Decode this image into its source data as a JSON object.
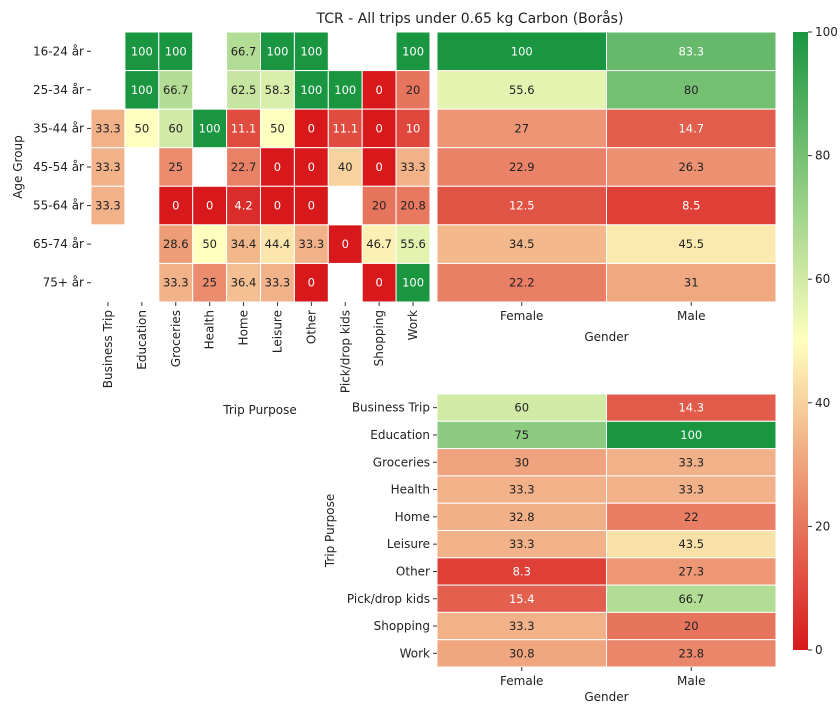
{
  "title": "TCR - All trips under 0.65 kg Carbon (Borås)",
  "colors": {
    "low": "#d7191c",
    "mid": "#ffffbf",
    "high": "#1a9641",
    "text_dark": "#222222",
    "text_light": "#ffffff"
  },
  "colorbar": {
    "min": 0,
    "max": 100,
    "ticks": [
      "0",
      "20",
      "40",
      "60",
      "80",
      "100"
    ]
  },
  "chart_data": [
    {
      "type": "heatmap",
      "xlabel": "Trip Purpose",
      "ylabel": "Age Group",
      "x": [
        "Business Trip",
        "Education",
        "Groceries",
        "Health",
        "Home",
        "Leisure",
        "Other",
        "Pick/drop kids",
        "Shopping",
        "Work"
      ],
      "y": [
        "16-24 år",
        "25-34 år",
        "35-44 år",
        "45-54 år",
        "55-64 år",
        "65-74 år",
        "75+ år"
      ],
      "values": [
        [
          null,
          100,
          100,
          null,
          66.7,
          100,
          100,
          null,
          null,
          100
        ],
        [
          null,
          100,
          66.7,
          null,
          62.5,
          58.3,
          100,
          100,
          0,
          20
        ],
        [
          33.3,
          50,
          60,
          100,
          11.1,
          50,
          0,
          11.1,
          0,
          10
        ],
        [
          33.3,
          null,
          25,
          null,
          22.7,
          0,
          0,
          40,
          0,
          33.3
        ],
        [
          33.3,
          null,
          0,
          0,
          4.2,
          0,
          0,
          null,
          20,
          20.8
        ],
        [
          null,
          null,
          28.6,
          50,
          34.4,
          44.4,
          33.3,
          0,
          46.7,
          55.6
        ],
        [
          null,
          null,
          33.3,
          25,
          36.4,
          33.3,
          0,
          null,
          0,
          100
        ]
      ]
    },
    {
      "type": "heatmap",
      "xlabel": "Gender",
      "ylabel": "",
      "x": [
        "Female",
        "Male"
      ],
      "y": [
        "16-24 år",
        "25-34 år",
        "35-44 år",
        "45-54 år",
        "55-64 år",
        "65-74 år",
        "75+ år"
      ],
      "values": [
        [
          100,
          83.3
        ],
        [
          55.6,
          80
        ],
        [
          27,
          14.7
        ],
        [
          22.9,
          26.3
        ],
        [
          12.5,
          8.5
        ],
        [
          34.5,
          45.5
        ],
        [
          22.2,
          31
        ]
      ]
    },
    {
      "type": "heatmap",
      "xlabel": "Gender",
      "ylabel": "Trip Purpose",
      "x": [
        "Female",
        "Male"
      ],
      "y": [
        "Business Trip",
        "Education",
        "Groceries",
        "Health",
        "Home",
        "Leisure",
        "Other",
        "Pick/drop kids",
        "Shopping",
        "Work"
      ],
      "values": [
        [
          60,
          14.3
        ],
        [
          75,
          100
        ],
        [
          30,
          33.3
        ],
        [
          33.3,
          33.3
        ],
        [
          32.8,
          22
        ],
        [
          33.3,
          43.5
        ],
        [
          8.3,
          27.3
        ],
        [
          15.4,
          66.7
        ],
        [
          33.3,
          20
        ],
        [
          30.8,
          23.8
        ]
      ]
    }
  ]
}
